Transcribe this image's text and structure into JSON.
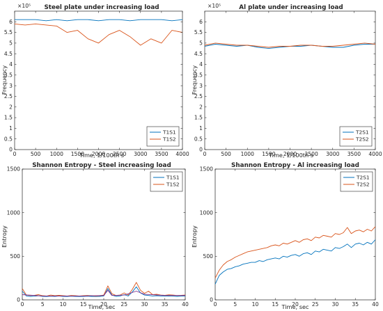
{
  "colors": {
    "series1": "#0072BD",
    "series2": "#D95319",
    "series3": "#7E2F8E",
    "series4": "#77AC30",
    "axis": "#262626"
  },
  "chart_data": [
    {
      "type": "line",
      "title": "Steel plate under increasing load",
      "xlabel": "Time, 1/100th s",
      "ylabel": "Frequency",
      "exponent_label": "×10⁵",
      "xlim": [
        0,
        4000
      ],
      "ylim": [
        0,
        6.5
      ],
      "xticks": [
        0,
        500,
        1000,
        1500,
        2000,
        2500,
        3000,
        3500,
        4000
      ],
      "yticks": [
        0,
        0.5,
        1,
        1.5,
        2,
        2.5,
        3,
        3.5,
        4,
        4.5,
        5,
        5.5,
        6
      ],
      "ytick_labels": [
        "0",
        "0.5",
        "1",
        "1.5",
        "2",
        "2.5",
        "3",
        "3.5",
        "4",
        "4.5",
        "5",
        "5.5",
        "6"
      ],
      "grid": false,
      "legend_position": "bottom-right",
      "series": [
        {
          "name": "T1S1",
          "color": "#0072BD",
          "x": [
            0,
            250,
            500,
            750,
            1000,
            1250,
            1500,
            1750,
            2000,
            2250,
            2500,
            2750,
            3000,
            3250,
            3500,
            3750,
            4000
          ],
          "y": [
            6.1,
            6.1,
            6.1,
            6.05,
            6.1,
            6.05,
            6.1,
            6.1,
            6.05,
            6.1,
            6.1,
            6.05,
            6.1,
            6.1,
            6.1,
            6.05,
            6.1
          ]
        },
        {
          "name": "T1S2",
          "color": "#D95319",
          "x": [
            0,
            250,
            500,
            750,
            1000,
            1250,
            1500,
            1750,
            2000,
            2250,
            2500,
            2750,
            3000,
            3250,
            3500,
            3750,
            4000
          ],
          "y": [
            5.9,
            5.85,
            5.9,
            5.85,
            5.8,
            5.5,
            5.6,
            5.2,
            5.0,
            5.4,
            5.6,
            5.3,
            4.9,
            5.2,
            5.0,
            5.6,
            5.5
          ]
        }
      ]
    },
    {
      "type": "line",
      "title": "Al plate under increasing load",
      "xlabel": "Time, 1/100th s",
      "ylabel": "Frequency",
      "exponent_label": "×10⁵",
      "xlim": [
        0,
        4000
      ],
      "ylim": [
        0,
        6.5
      ],
      "xticks": [
        0,
        500,
        1000,
        1500,
        2000,
        2500,
        3000,
        3500,
        4000
      ],
      "yticks": [
        0,
        0.5,
        1,
        1.5,
        2,
        2.5,
        3,
        3.5,
        4,
        4.5,
        5,
        5.5,
        6
      ],
      "ytick_labels": [
        "0",
        "0.5",
        "1",
        "1.5",
        "2",
        "2.5",
        "3",
        "3.5",
        "4",
        "4.5",
        "5",
        "5.5",
        "6"
      ],
      "grid": false,
      "legend_position": "bottom-right",
      "series": [
        {
          "name": "T2S1",
          "color": "#0072BD",
          "x": [
            0,
            250,
            500,
            750,
            1000,
            1250,
            1500,
            1750,
            2000,
            2250,
            2500,
            2750,
            3000,
            3250,
            3500,
            3750,
            4000
          ],
          "y": [
            4.85,
            4.95,
            4.9,
            4.85,
            4.9,
            4.8,
            4.75,
            4.8,
            4.85,
            4.85,
            4.9,
            4.85,
            4.8,
            4.8,
            4.9,
            4.95,
            4.95
          ]
        },
        {
          "name": "T2S2",
          "color": "#D95319",
          "x": [
            0,
            250,
            500,
            750,
            1000,
            1250,
            1500,
            1750,
            2000,
            2250,
            2500,
            2750,
            3000,
            3250,
            3500,
            3750,
            4000
          ],
          "y": [
            4.9,
            5.0,
            4.95,
            4.9,
            4.9,
            4.85,
            4.8,
            4.85,
            4.85,
            4.9,
            4.9,
            4.85,
            4.85,
            4.9,
            4.95,
            5.0,
            4.95
          ]
        }
      ]
    },
    {
      "type": "line",
      "title": "Shannon Entropy - Steel increasing load",
      "xlabel": "Time, sec",
      "ylabel": "Entropy",
      "xlim": [
        0,
        40
      ],
      "ylim": [
        0,
        1500
      ],
      "xticks": [
        0,
        5,
        10,
        15,
        20,
        25,
        30,
        35,
        40
      ],
      "yticks": [
        0,
        500,
        1000,
        1500
      ],
      "ytick_labels": [
        "0",
        "500",
        "1000",
        "1500"
      ],
      "grid": false,
      "legend_position": "top-right",
      "series": [
        {
          "name": "T1S1",
          "color": "#0072BD",
          "x": [
            0,
            1,
            2,
            3,
            4,
            5,
            6,
            7,
            8,
            9,
            10,
            11,
            12,
            13,
            14,
            15,
            16,
            17,
            18,
            19,
            20,
            21,
            22,
            23,
            24,
            25,
            26,
            27,
            28,
            29,
            30,
            31,
            32,
            33,
            34,
            35,
            36,
            37,
            38,
            39,
            40
          ],
          "y": [
            100,
            45,
            40,
            42,
            48,
            40,
            38,
            42,
            40,
            45,
            40,
            38,
            42,
            40,
            38,
            40,
            42,
            40,
            38,
            40,
            45,
            130,
            55,
            40,
            45,
            60,
            45,
            90,
            150,
            80,
            55,
            50,
            45,
            48,
            45,
            42,
            45,
            42,
            40,
            42,
            45
          ]
        },
        {
          "name": "T1S2",
          "color": "#D95319",
          "x": [
            0,
            1,
            2,
            3,
            4,
            5,
            6,
            7,
            8,
            9,
            10,
            11,
            12,
            13,
            14,
            15,
            16,
            17,
            18,
            19,
            20,
            21,
            22,
            23,
            24,
            25,
            26,
            27,
            28,
            29,
            30,
            31,
            32,
            33,
            34,
            35,
            36,
            37,
            38,
            39,
            40
          ],
          "y": [
            130,
            55,
            50,
            52,
            60,
            48,
            45,
            55,
            48,
            52,
            48,
            45,
            50,
            48,
            45,
            48,
            50,
            48,
            45,
            48,
            55,
            160,
            70,
            50,
            55,
            80,
            55,
            120,
            200,
            110,
            75,
            100,
            60,
            65,
            55,
            52,
            58,
            55,
            50,
            52,
            55
          ]
        },
        {
          "name": "",
          "color": "#7E2F8E",
          "x": [
            0,
            5,
            10,
            15,
            20,
            21,
            22,
            25,
            28,
            30,
            35,
            40
          ],
          "y": [
            60,
            45,
            45,
            45,
            50,
            110,
            50,
            55,
            100,
            65,
            50,
            50
          ]
        }
      ]
    },
    {
      "type": "line",
      "title": "Shannon Entropy - Al increasing load",
      "xlabel": "Time, sec",
      "ylabel": "Entropy",
      "xlim": [
        0,
        40
      ],
      "ylim": [
        0,
        1500
      ],
      "xticks": [
        0,
        5,
        10,
        15,
        20,
        25,
        30,
        35,
        40
      ],
      "yticks": [
        0,
        500,
        1000,
        1500
      ],
      "ytick_labels": [
        "0",
        "500",
        "1000",
        "1500"
      ],
      "grid": false,
      "legend_position": "top-right",
      "series": [
        {
          "name": "T2S1",
          "color": "#0072BD",
          "x": [
            0,
            1,
            2,
            3,
            4,
            5,
            6,
            7,
            8,
            9,
            10,
            11,
            12,
            13,
            14,
            15,
            16,
            17,
            18,
            19,
            20,
            21,
            22,
            23,
            24,
            25,
            26,
            27,
            28,
            29,
            30,
            31,
            32,
            33,
            34,
            35,
            36,
            37,
            38,
            39,
            40
          ],
          "y": [
            180,
            280,
            320,
            350,
            360,
            380,
            390,
            410,
            420,
            430,
            430,
            450,
            440,
            460,
            470,
            480,
            470,
            500,
            490,
            510,
            520,
            500,
            530,
            540,
            520,
            560,
            550,
            580,
            570,
            560,
            600,
            590,
            610,
            640,
            600,
            640,
            650,
            630,
            660,
            640,
            690
          ]
        },
        {
          "name": "T2S2",
          "color": "#D95319",
          "x": [
            0,
            1,
            2,
            3,
            4,
            5,
            6,
            7,
            8,
            9,
            10,
            11,
            12,
            13,
            14,
            15,
            16,
            17,
            18,
            19,
            20,
            21,
            22,
            23,
            24,
            25,
            26,
            27,
            28,
            29,
            30,
            31,
            32,
            33,
            34,
            35,
            36,
            37,
            38,
            39,
            40
          ],
          "y": [
            250,
            340,
            400,
            440,
            460,
            490,
            510,
            530,
            550,
            560,
            570,
            580,
            590,
            600,
            620,
            630,
            620,
            650,
            640,
            660,
            680,
            660,
            690,
            700,
            680,
            720,
            710,
            740,
            730,
            720,
            760,
            750,
            770,
            830,
            760,
            790,
            800,
            780,
            810,
            790,
            840
          ]
        }
      ]
    }
  ]
}
